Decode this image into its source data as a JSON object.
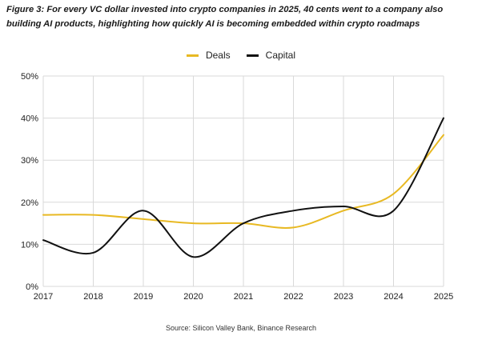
{
  "caption": "Figure 3: For every VC dollar invested into crypto companies in 2025, 40 cents went to a company also building AI products, highlighting how quickly AI is becoming embedded within crypto roadmaps",
  "source": "Source: Silicon Valley Bank, Binance Research",
  "colors": {
    "deals": "#e8b923",
    "capital": "#111111",
    "grid": "#d9d9d9"
  },
  "chart_data": {
    "type": "line",
    "title": "Figure 3: For every VC dollar invested into crypto companies in 2025, 40 cents went to a company also building AI products, highlighting how quickly AI is becoming embedded within crypto roadmaps",
    "xlabel": "",
    "ylabel": "",
    "x": [
      "2017",
      "2018",
      "2019",
      "2020",
      "2021",
      "2022",
      "2023",
      "2024",
      "2025"
    ],
    "y_ticks": [
      "0%",
      "10%",
      "20%",
      "30%",
      "40%",
      "50%"
    ],
    "ylim": [
      0,
      50
    ],
    "grid": true,
    "legend_position": "top-center",
    "series": [
      {
        "name": "Deals",
        "color": "#e8b923",
        "values": [
          17,
          17,
          16,
          15,
          15,
          14,
          18,
          22,
          36
        ]
      },
      {
        "name": "Capital",
        "color": "#111111",
        "values": [
          11,
          8,
          18,
          7,
          15,
          18,
          19,
          18,
          40
        ]
      }
    ]
  }
}
